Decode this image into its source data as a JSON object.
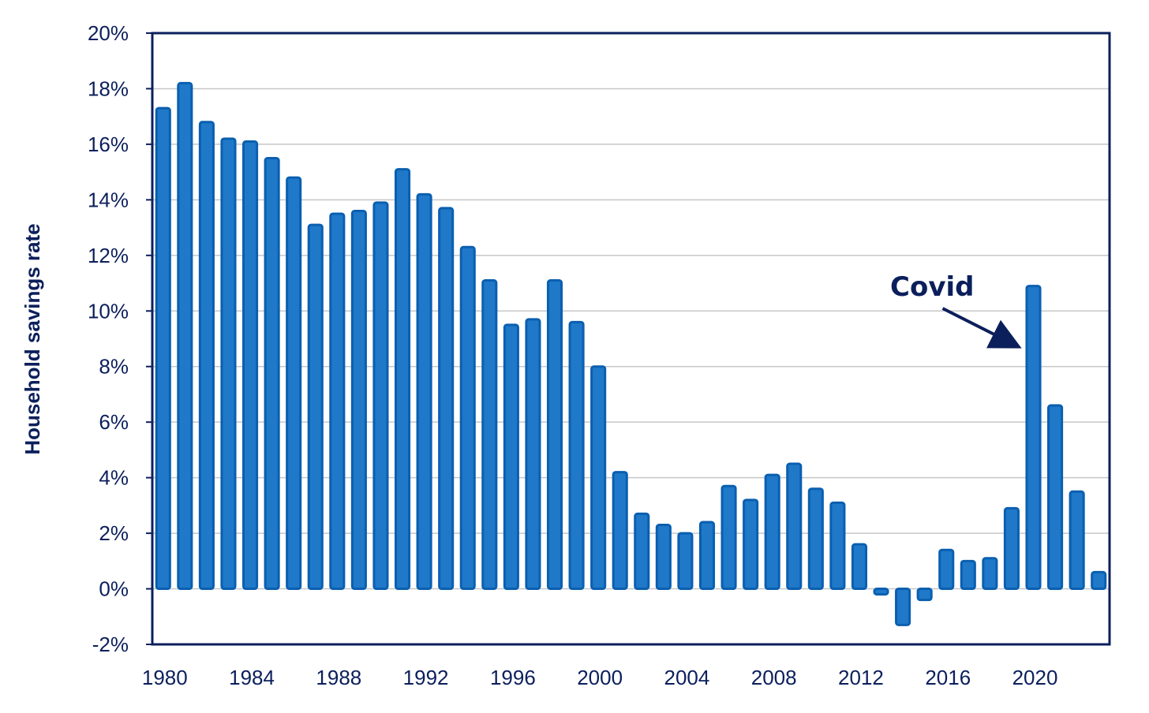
{
  "chart_data": {
    "type": "bar",
    "ylabel": "Household savings rate",
    "xlabel": "",
    "title": "",
    "ylim": [
      -2,
      20
    ],
    "ytick_values": [
      -2,
      0,
      2,
      4,
      6,
      8,
      10,
      12,
      14,
      16,
      18,
      20
    ],
    "ytick_labels": [
      "-2%",
      "0%",
      "2%",
      "4%",
      "6%",
      "8%",
      "10%",
      "12%",
      "14%",
      "16%",
      "18%",
      "20%"
    ],
    "xtick_labels": [
      "1980",
      "1984",
      "1988",
      "1992",
      "1996",
      "2000",
      "2004",
      "2008",
      "2012",
      "2016",
      "2020"
    ],
    "grid": true,
    "bar_color": "#1f78c8",
    "bar_edge_color": "#0a5fb0",
    "frame_color": "#0b1f5c",
    "categories": [
      1980,
      1981,
      1982,
      1983,
      1984,
      1985,
      1986,
      1987,
      1988,
      1989,
      1990,
      1991,
      1992,
      1993,
      1994,
      1995,
      1996,
      1997,
      1998,
      1999,
      2000,
      2001,
      2002,
      2003,
      2004,
      2005,
      2006,
      2007,
      2008,
      2009,
      2010,
      2011,
      2012,
      2013,
      2014,
      2015,
      2016,
      2017,
      2018,
      2019,
      2020,
      2021,
      2022,
      2023
    ],
    "values": [
      17.3,
      18.2,
      16.8,
      16.2,
      16.1,
      15.5,
      14.8,
      13.1,
      13.5,
      13.6,
      13.9,
      15.1,
      14.2,
      13.7,
      12.3,
      11.1,
      9.5,
      9.7,
      11.1,
      9.6,
      8.0,
      4.2,
      2.7,
      2.3,
      2.0,
      2.4,
      3.7,
      3.2,
      4.1,
      4.5,
      3.6,
      3.1,
      1.6,
      -0.2,
      -1.3,
      -0.4,
      1.4,
      1.0,
      1.1,
      2.9,
      10.9,
      6.6,
      3.5,
      0.6
    ],
    "annotations": [
      {
        "text": "Covid",
        "target_category": 2020
      }
    ]
  }
}
